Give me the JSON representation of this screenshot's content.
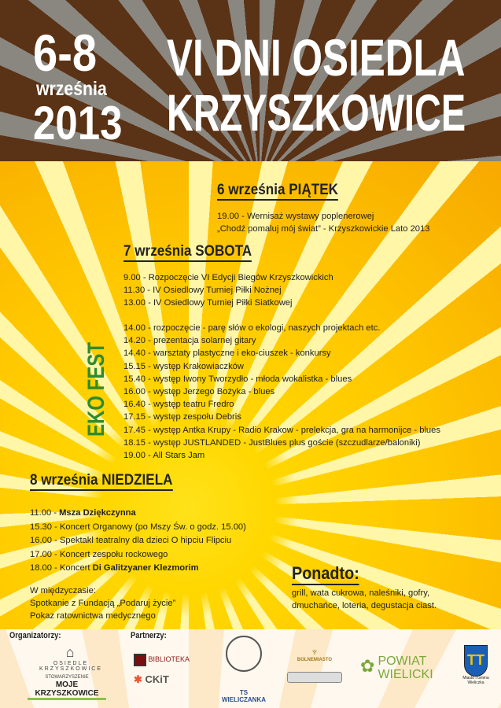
{
  "header": {
    "dates": "6-8",
    "month": "września",
    "year": "2013",
    "title_line1": "VI DNI OSIEDLA",
    "title_line2": "KRZYSZKOWICE"
  },
  "friday": {
    "heading": "6 września PIĄTEK",
    "lines": [
      "19.00 - Wernisaż wystawy poplenerowej",
      "„Chodź pomaluj mój świat” - Krzyszkowickie Lato 2013"
    ]
  },
  "saturday": {
    "heading": "7 września SOBOTA",
    "lines": [
      "9.00 - Rozpoczęcie VI Edycji Biegów Krzyszkowickich",
      "11.30 - IV Osiedlowy Turniej Piłki Nożnej",
      "13.00 - IV Osiedlowy Turniej Piłki Siatkowej"
    ],
    "eko_label": "EKO FEST",
    "eko_lines": [
      "14.00 - rozpoczęcie - parę słów o ekologi, naszych projektach etc.",
      "14.20 - prezentacja solarnej gitary",
      "14.40 - warsztaty plastyczne i eko-ciuszek - konkursy",
      "15.15 - występ Krakowiaczków",
      "15.40 - występ Iwony Tworzydło - młoda wokalistka - blues",
      "16.00 - występ Jerzego Bożyka - blues",
      "16.40 - występ teatru Fredro",
      "17.15 - występ zespołu Debris",
      "17.45 - występ Antka Krupy - Radio Krakow - prelekcja, gra na harmonijce - blues",
      "18.15 - występ JUSTLANDED - JustBlues plus goście (szczudlarze/baloniki)",
      "19.00 - All Stars Jam"
    ]
  },
  "sunday": {
    "heading": "8 września NIEDZIELA",
    "lines": [
      {
        "time": "11.00 - ",
        "text": "Msza Dziękczynna",
        "bold": true
      },
      {
        "time": "15.30 - ",
        "text": "Koncert Organowy (po Mszy Św. o godz. 15.00)"
      },
      {
        "time": "16.00 - ",
        "text": "Spektakl teatralny dla dzieci O hipciu Flipciu"
      },
      {
        "time": "17.00 - ",
        "text": "Koncert zespołu rockowego"
      },
      {
        "time": "18.00 - Koncert ",
        "text": "Di Galitzyaner Klezmorim",
        "bold": true
      }
    ],
    "meanwhile": [
      "W międzyczasie:",
      "Spotkanie z Fundacją „Podaruj życie”",
      "Pokaz ratownictwa medycznego"
    ]
  },
  "extra": {
    "heading": "Ponadto:",
    "lines": [
      "grill, wata cukrowa, naleśniki, gofry,",
      "dmuchańce, loteria, degustacja ciast."
    ]
  },
  "footer": {
    "organizers_label": "Organizatorzy:",
    "partners_label": "Partnerzy:",
    "logos": {
      "osiedle": "OSIEDLE KRZYSZKOWICE",
      "stowarzyszenie": "STOWARZYSZENIE",
      "moje": "MOJE KRZYSZKOWICE",
      "biblioteka": "BIBLIOTEKA",
      "ckit": "CKiT",
      "ts": "TS WIELICZANKA",
      "bolne": "BOLNEMIASTO",
      "powiat1": "POWIAT",
      "powiat2": "WIELICKI",
      "gmina": "Miasto i Gmina Wieliczka"
    }
  },
  "colors": {
    "header_brown": "#5a3215",
    "eko_green": "#2e8b2e",
    "sun": "#ffd700"
  }
}
